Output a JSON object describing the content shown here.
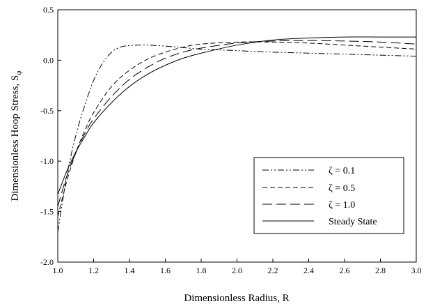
{
  "chart_data": {
    "type": "line",
    "xlabel": "Dimensionless Radius, R",
    "ylabel_main": "Dimensionless Hoop Stress, S",
    "ylabel_sub": "φ",
    "xlim": [
      1.0,
      3.0
    ],
    "ylim": [
      -2.0,
      0.5
    ],
    "xticks": [
      "1.0",
      "1.2",
      "1.4",
      "1.6",
      "1.8",
      "2.0",
      "2.2",
      "2.4",
      "2.6",
      "2.8",
      "3.0"
    ],
    "yticks": [
      "0.5",
      "0.0",
      "-0.5",
      "-1.0",
      "-1.5",
      "-2.0"
    ],
    "grid": false,
    "legend_position": "bottom-right",
    "series": [
      {
        "name": "ζ = 0.1",
        "style": "dash-dot-dot",
        "x": [
          1.0,
          1.05,
          1.1,
          1.15,
          1.2,
          1.25,
          1.3,
          1.35,
          1.4,
          1.45,
          1.5,
          1.6,
          1.7,
          1.8,
          2.0,
          2.2,
          2.4,
          2.6,
          2.8,
          3.0
        ],
        "y": [
          -1.7,
          -1.15,
          -0.75,
          -0.45,
          -0.2,
          -0.03,
          0.08,
          0.13,
          0.145,
          0.15,
          0.15,
          0.14,
          0.125,
          0.11,
          0.095,
          0.08,
          0.07,
          0.06,
          0.05,
          0.04
        ]
      },
      {
        "name": "ζ = 0.5",
        "style": "short-dash",
        "x": [
          1.0,
          1.05,
          1.1,
          1.15,
          1.2,
          1.3,
          1.4,
          1.5,
          1.6,
          1.7,
          1.8,
          2.0,
          2.2,
          2.4,
          2.6,
          2.8,
          3.0
        ],
        "y": [
          -1.55,
          -1.2,
          -0.92,
          -0.7,
          -0.52,
          -0.26,
          -0.1,
          0.01,
          0.08,
          0.13,
          0.16,
          0.18,
          0.18,
          0.17,
          0.15,
          0.13,
          0.11
        ]
      },
      {
        "name": "ζ = 1.0",
        "style": "long-dash",
        "x": [
          1.0,
          1.05,
          1.1,
          1.15,
          1.2,
          1.3,
          1.4,
          1.5,
          1.6,
          1.7,
          1.8,
          2.0,
          2.2,
          2.4,
          2.6,
          2.8,
          3.0
        ],
        "y": [
          -1.45,
          -1.15,
          -0.92,
          -0.73,
          -0.58,
          -0.36,
          -0.19,
          -0.07,
          0.02,
          0.08,
          0.12,
          0.17,
          0.19,
          0.195,
          0.19,
          0.18,
          0.16
        ]
      },
      {
        "name": "Steady State",
        "style": "solid",
        "x": [
          1.0,
          1.05,
          1.1,
          1.15,
          1.2,
          1.3,
          1.4,
          1.5,
          1.6,
          1.7,
          1.8,
          2.0,
          2.2,
          2.4,
          2.6,
          2.8,
          3.0
        ],
        "y": [
          -1.33,
          -1.1,
          -0.91,
          -0.76,
          -0.62,
          -0.42,
          -0.26,
          -0.14,
          -0.05,
          0.02,
          0.07,
          0.15,
          0.2,
          0.22,
          0.23,
          0.23,
          0.23
        ]
      }
    ]
  }
}
